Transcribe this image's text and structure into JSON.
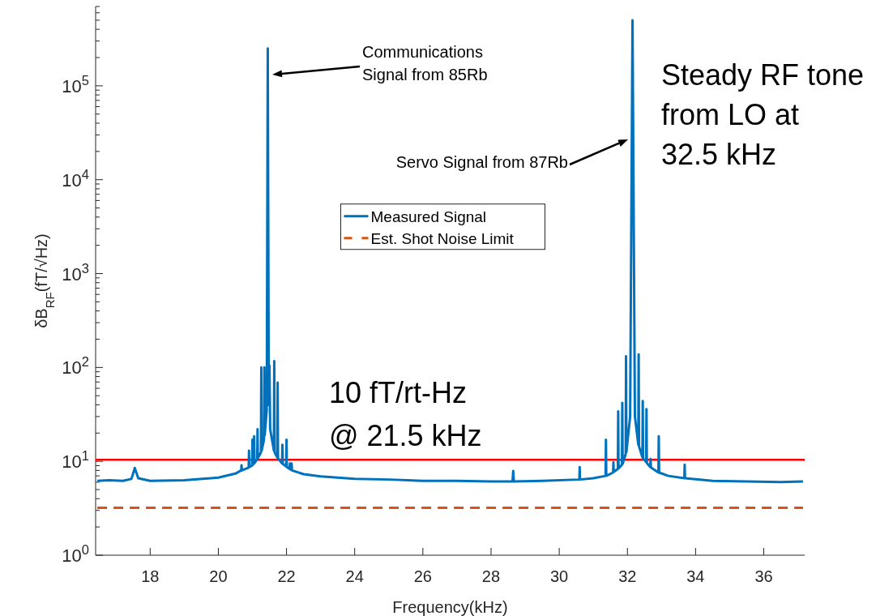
{
  "chart_data": {
    "type": "line",
    "xlabel": "Frequency(kHz)",
    "ylabel": "δB$_{RF}$(fT/√Hz)",
    "xlim": [
      16.4,
      37.2
    ],
    "xticks": [
      18,
      20,
      22,
      24,
      26,
      28,
      30,
      32,
      34,
      36
    ],
    "ylim": [
      1,
      700000
    ],
    "yticks": [
      {
        "value": 1,
        "label": "10$^{0}$"
      },
      {
        "value": 10,
        "label": "10$^{1}$"
      },
      {
        "value": 100,
        "label": "10$^{2}$"
      },
      {
        "value": 1000,
        "label": "10$^{3}$"
      },
      {
        "value": 10000,
        "label": "10$^{4}$"
      },
      {
        "value": 100000,
        "label": "10$^{5}$"
      }
    ],
    "log": "y",
    "legend": "center",
    "grid": false,
    "series": [
      {
        "name": "Measured Signal",
        "color": "#0072bd",
        "line_style": "solid",
        "x": [
          16.45,
          16.8,
          17.2,
          17.45,
          17.55,
          17.65,
          18,
          19,
          20,
          20.5,
          20.67,
          20.68,
          20.69,
          20.89,
          20.9,
          20.91,
          20.99,
          21.0,
          21.01,
          21.04,
          21.05,
          21.06,
          21.14,
          21.15,
          21.16,
          21.25,
          21.26,
          21.27,
          21.34,
          21.35,
          21.36,
          21.42,
          21.45,
          21.48,
          21.5,
          21.52,
          21.63,
          21.64,
          21.65,
          21.73,
          21.74,
          21.75,
          21.87,
          21.88,
          21.89,
          21.99,
          22.0,
          22.01,
          22.09,
          22.1,
          22.11,
          22.14,
          22.15,
          22.16,
          22.5,
          23,
          24,
          25,
          26,
          27,
          28,
          28.63,
          28.65,
          28.67,
          29.5,
          30.59,
          30.6,
          30.61,
          31,
          31.36,
          31.37,
          31.38,
          31.58,
          31.59,
          31.6,
          31.72,
          31.73,
          31.74,
          31.84,
          31.85,
          31.86,
          31.95,
          31.96,
          31.97,
          32.08,
          32.15,
          32.22,
          32.32,
          32.33,
          32.34,
          32.44,
          32.45,
          32.46,
          32.55,
          32.56,
          32.57,
          32.67,
          32.68,
          32.69,
          32.91,
          32.92,
          32.93,
          33.2,
          33.67,
          33.68,
          33.69,
          34.5,
          35.5,
          36.5,
          37.15
        ],
        "values": [
          6.2,
          6.3,
          6.2,
          6.5,
          8.5,
          6.6,
          6.2,
          6.3,
          6.7,
          7.4,
          8.0,
          9.1,
          8.0,
          8.6,
          13,
          8.7,
          9,
          17,
          9.2,
          9.4,
          18.5,
          9.6,
          10.5,
          22,
          10.8,
          12.5,
          100,
          13,
          17,
          100,
          19,
          35,
          250000,
          40,
          105,
          22,
          13,
          117,
          12.5,
          11,
          69,
          10.8,
          9.5,
          15,
          9.4,
          8.8,
          17,
          8.7,
          8.3,
          9.5,
          8.2,
          8.1,
          9.5,
          8.0,
          7.3,
          6.9,
          6.5,
          6.4,
          6.2,
          6.2,
          6.1,
          6.1,
          7.9,
          6.1,
          6.2,
          6.4,
          8.7,
          6.4,
          6.6,
          7.0,
          17,
          7.0,
          7.6,
          9.8,
          7.7,
          8.3,
          34,
          8.4,
          9.2,
          42,
          9.4,
          12,
          132,
          12.5,
          30,
          500000,
          30,
          15,
          138,
          14.5,
          11,
          44,
          10.8,
          9.8,
          36,
          9.6,
          8.7,
          10.6,
          8.6,
          7.6,
          18.5,
          7.6,
          7.0,
          6.6,
          9.2,
          6.6,
          6.2,
          6.1,
          6.0,
          6.1
        ]
      },
      {
        "name": "Est. Shot Noise Limit",
        "color": "#d95319",
        "line_style": "dashed",
        "x": [
          16.45,
          37.15
        ],
        "values": [
          3.2,
          3.2
        ]
      }
    ],
    "ref_lines": [
      {
        "axis": "y",
        "value": 10.4,
        "color": "#ff0000"
      }
    ],
    "annotations": [
      "Communications\nSignal from 85Rb",
      "Servo Signal from 87Rb",
      "Steady RF tone\nfrom LO at\n32.5 kHz",
      "10 fT/rt-Hz\n@ 21.5 kHz"
    ]
  }
}
